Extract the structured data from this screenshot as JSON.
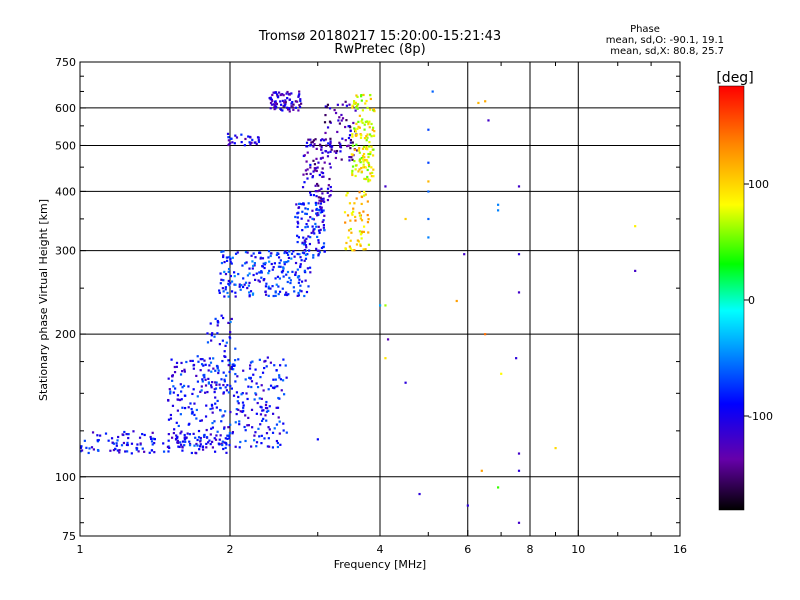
{
  "chart_data": {
    "type": "scatter",
    "title": "Tromsø 20180217 15:20:00-15:21:43",
    "subtitle": "RwPretec (8p)",
    "xlabel": "Frequency [MHz]",
    "ylabel": "Stationary phase Virtual Height [km]",
    "x_scale": "log",
    "y_scale": "log",
    "xlim": [
      1,
      16
    ],
    "ylim": [
      75,
      750
    ],
    "x_ticks": [
      "1",
      "2",
      "4",
      "6",
      "8",
      "10",
      "16"
    ],
    "y_ticks": [
      "75",
      "100",
      "200",
      "300",
      "400",
      "500",
      "600",
      "750"
    ],
    "phase_info": {
      "label": "Phase",
      "line_o": "mean, sd,O: -90.1, 19.1",
      "line_x": "mean, sd,X: 80.8, 25.7"
    },
    "colorbar": {
      "label": "[deg]",
      "ticks": [
        "100",
        "0",
        "-100"
      ],
      "range": [
        -180,
        180
      ]
    },
    "clusters": [
      {
        "x0": 1.0,
        "x1": 2.0,
        "y0": 112,
        "y1": 125,
        "phase": -95,
        "n": 150
      },
      {
        "x0": 1.5,
        "x1": 2.6,
        "y0": 115,
        "y1": 180,
        "phase": -90,
        "n": 320
      },
      {
        "x0": 1.8,
        "x1": 2.05,
        "y0": 150,
        "y1": 220,
        "phase": -85,
        "n": 60
      },
      {
        "x0": 1.9,
        "x1": 2.9,
        "y0": 240,
        "y1": 300,
        "phase": -80,
        "n": 220
      },
      {
        "x0": 2.7,
        "x1": 3.1,
        "y0": 290,
        "y1": 380,
        "phase": -90,
        "n": 110
      },
      {
        "x0": 2.8,
        "x1": 3.2,
        "y0": 380,
        "y1": 520,
        "phase": -120,
        "n": 100
      },
      {
        "x0": 3.1,
        "x1": 3.6,
        "y0": 460,
        "y1": 620,
        "phase": -130,
        "n": 70
      },
      {
        "x0": 2.4,
        "x1": 2.8,
        "y0": 590,
        "y1": 650,
        "phase": -120,
        "n": 80
      },
      {
        "x0": 1.95,
        "x1": 2.3,
        "y0": 500,
        "y1": 530,
        "phase": -110,
        "n": 30
      },
      {
        "x0": 3.5,
        "x1": 3.9,
        "y0": 420,
        "y1": 640,
        "phase": 80,
        "n": 140
      },
      {
        "x0": 3.4,
        "x1": 3.8,
        "y0": 300,
        "y1": 400,
        "phase": 100,
        "n": 60
      }
    ],
    "scatter_points": [
      {
        "x": 4.1,
        "y": 410,
        "phase": -120
      },
      {
        "x": 4.0,
        "y": 230,
        "phase": -40
      },
      {
        "x": 4.1,
        "y": 230,
        "phase": 60
      },
      {
        "x": 4.15,
        "y": 195,
        "phase": -130
      },
      {
        "x": 4.1,
        "y": 178,
        "phase": 90
      },
      {
        "x": 4.5,
        "y": 350,
        "phase": 100
      },
      {
        "x": 4.5,
        "y": 158,
        "phase": -110
      },
      {
        "x": 4.8,
        "y": 92,
        "phase": -110
      },
      {
        "x": 5.0,
        "y": 540,
        "phase": -70
      },
      {
        "x": 5.0,
        "y": 460,
        "phase": -70
      },
      {
        "x": 5.0,
        "y": 420,
        "phase": 110
      },
      {
        "x": 5.0,
        "y": 400,
        "phase": -60
      },
      {
        "x": 5.0,
        "y": 350,
        "phase": -60
      },
      {
        "x": 5.0,
        "y": 320,
        "phase": -50
      },
      {
        "x": 5.1,
        "y": 650,
        "phase": -60
      },
      {
        "x": 5.9,
        "y": 295,
        "phase": -120
      },
      {
        "x": 5.7,
        "y": 235,
        "phase": 120
      },
      {
        "x": 6.0,
        "y": 87,
        "phase": -110
      },
      {
        "x": 6.3,
        "y": 615,
        "phase": 110
      },
      {
        "x": 6.5,
        "y": 620,
        "phase": 115
      },
      {
        "x": 6.6,
        "y": 565,
        "phase": -120
      },
      {
        "x": 6.4,
        "y": 103,
        "phase": 120
      },
      {
        "x": 6.5,
        "y": 200,
        "phase": 140
      },
      {
        "x": 6.9,
        "y": 375,
        "phase": -50
      },
      {
        "x": 6.9,
        "y": 365,
        "phase": -50
      },
      {
        "x": 7.0,
        "y": 165,
        "phase": 80
      },
      {
        "x": 6.9,
        "y": 95,
        "phase": 40
      },
      {
        "x": 7.6,
        "y": 410,
        "phase": -120
      },
      {
        "x": 7.6,
        "y": 295,
        "phase": -110
      },
      {
        "x": 7.6,
        "y": 245,
        "phase": -120
      },
      {
        "x": 7.5,
        "y": 178,
        "phase": -110
      },
      {
        "x": 7.6,
        "y": 112,
        "phase": -120
      },
      {
        "x": 7.6,
        "y": 103,
        "phase": -110
      },
      {
        "x": 7.6,
        "y": 80,
        "phase": -120
      },
      {
        "x": 9.0,
        "y": 115,
        "phase": 95
      },
      {
        "x": 13.0,
        "y": 338,
        "phase": 85
      },
      {
        "x": 13.0,
        "y": 272,
        "phase": -120
      },
      {
        "x": 3.0,
        "y": 120,
        "phase": -90
      }
    ]
  }
}
